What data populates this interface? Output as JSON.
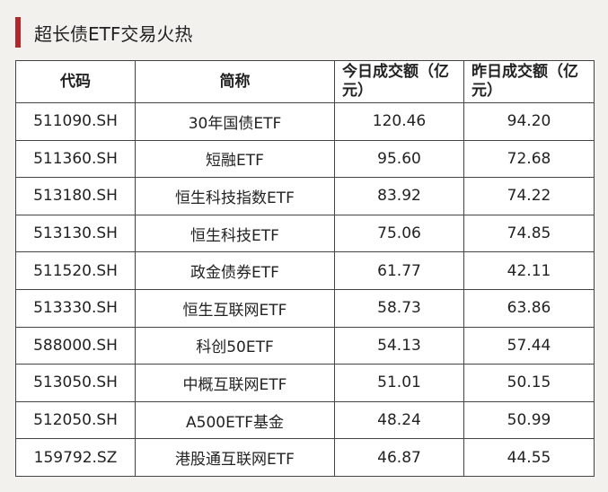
{
  "header": {
    "title": "超长债ETF交易火热",
    "accent_color": "#b3262b"
  },
  "table": {
    "columns": [
      "代码",
      "简称",
      "今日成交额（亿元）",
      "昨日成交额（亿元）"
    ],
    "rows": [
      [
        "511090.SH",
        "30年国债ETF",
        "120.46",
        "94.20"
      ],
      [
        "511360.SH",
        "短融ETF",
        "95.60",
        "72.68"
      ],
      [
        "513180.SH",
        "恒生科技指数ETF",
        "83.92",
        "74.22"
      ],
      [
        "513130.SH",
        "恒生科技ETF",
        "75.06",
        "74.85"
      ],
      [
        "511520.SH",
        "政金债券ETF",
        "61.77",
        "42.11"
      ],
      [
        "513330.SH",
        "恒生互联网ETF",
        "58.73",
        "63.86"
      ],
      [
        "588000.SH",
        "科创50ETF",
        "54.13",
        "57.44"
      ],
      [
        "513050.SH",
        "中概互联网ETF",
        "51.01",
        "50.15"
      ],
      [
        "512050.SH",
        "A500ETF基金",
        "48.24",
        "50.99"
      ],
      [
        "159792.SZ",
        "港股通互联网ETF",
        "46.87",
        "44.55"
      ]
    ]
  }
}
